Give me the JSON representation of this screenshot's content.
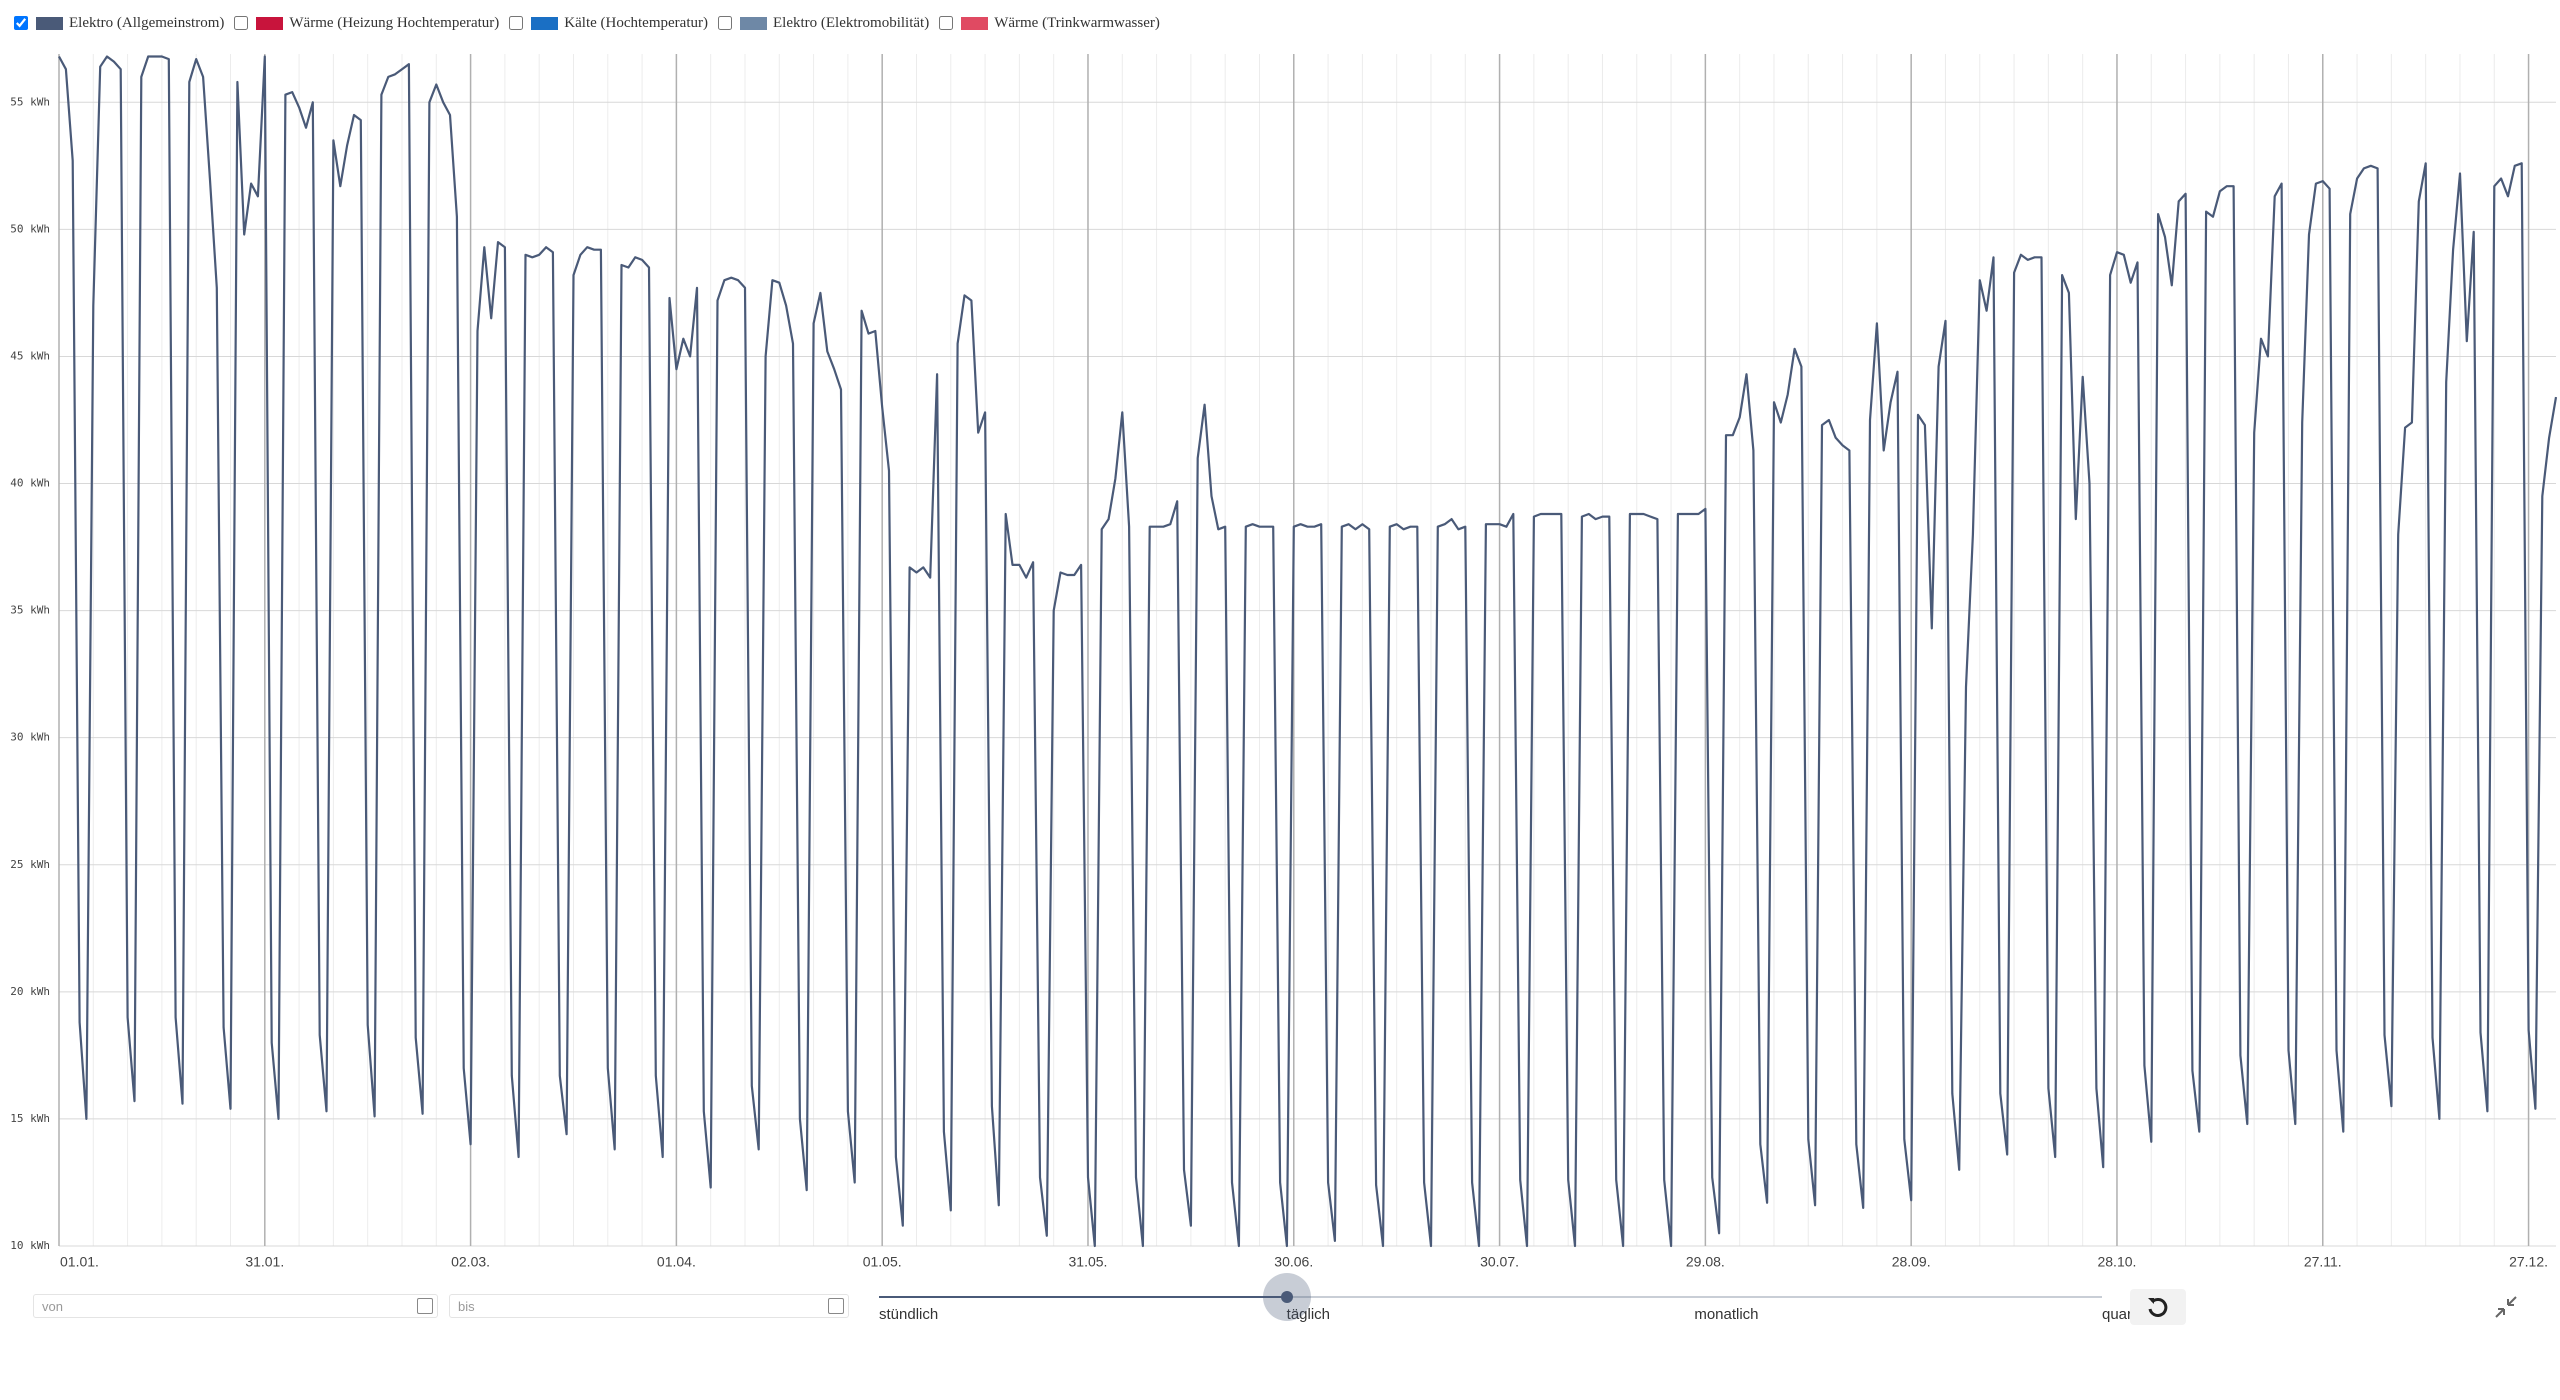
{
  "chart_data": {
    "type": "line",
    "series": [
      {
        "name": "Elektro (Allgemeinstrom)",
        "color": "#4a5a78",
        "visible": true,
        "values": [
          56.8,
          56.3,
          52.7,
          18.8,
          15,
          47,
          56.4,
          56.8,
          56.6,
          56.3,
          19,
          15.7,
          56,
          56.8,
          56.8,
          56.8,
          56.7,
          19,
          15.6,
          55.8,
          56.7,
          56,
          52,
          47.7,
          18.6,
          15.4,
          55.8,
          49.8,
          51.8,
          51.3,
          56.8,
          18,
          15,
          55.3,
          55.4,
          54.8,
          54,
          55,
          18.3,
          15.3,
          53.5,
          51.7,
          53.3,
          54.5,
          54.3,
          18.7,
          15.1,
          55.3,
          56,
          56.1,
          56.3,
          56.5,
          18.2,
          15.2,
          55,
          55.7,
          55,
          54.5,
          50.5,
          17,
          14,
          46,
          49.3,
          46.5,
          49.5,
          49.3,
          16.7,
          13.5,
          49,
          48.9,
          49,
          49.3,
          49.1,
          16.7,
          14.4,
          48.2,
          49,
          49.3,
          49.2,
          49.2,
          17,
          13.8,
          48.6,
          48.5,
          48.9,
          48.8,
          48.5,
          16.7,
          13.5,
          47.3,
          44.5,
          45.7,
          45,
          47.7,
          15.3,
          12.3,
          47.2,
          48,
          48.1,
          48,
          47.7,
          16.3,
          13.8,
          45,
          48,
          47.9,
          47,
          45.5,
          15,
          12.2,
          46.3,
          47.5,
          45.2,
          44.5,
          43.7,
          15.3,
          12.5,
          46.8,
          45.9,
          46,
          43,
          40.5,
          13.5,
          10.8,
          36.7,
          36.5,
          36.7,
          36.3,
          44.3,
          14.5,
          11.4,
          45.5,
          47.4,
          47.2,
          42,
          42.8,
          15.5,
          11.6,
          38.8,
          36.8,
          36.8,
          36.3,
          36.9,
          12.7,
          10.4,
          35,
          36.5,
          36.4,
          36.4,
          36.8,
          12.7,
          10,
          38.2,
          38.6,
          40.2,
          42.8,
          38.3,
          12.7,
          10,
          38.3,
          38.3,
          38.3,
          38.4,
          39.3,
          13,
          10.8,
          41,
          43.1,
          39.5,
          38.2,
          38.3,
          12.5,
          10,
          38.3,
          38.4,
          38.3,
          38.3,
          38.3,
          12.5,
          10,
          38.3,
          38.4,
          38.3,
          38.3,
          38.4,
          12.5,
          10.2,
          38.3,
          38.4,
          38.2,
          38.4,
          38.2,
          12.4,
          10,
          38.3,
          38.4,
          38.2,
          38.3,
          38.3,
          12.5,
          10,
          38.3,
          38.4,
          38.6,
          38.2,
          38.3,
          12.5,
          10,
          38.4,
          38.4,
          38.4,
          38.3,
          38.8,
          12.6,
          10,
          38.7,
          38.8,
          38.8,
          38.8,
          38.8,
          12.6,
          10,
          38.7,
          38.8,
          38.6,
          38.7,
          38.7,
          12.6,
          10,
          38.8,
          38.8,
          38.8,
          38.7,
          38.6,
          12.6,
          10,
          38.8,
          38.8,
          38.8,
          38.8,
          39,
          12.7,
          10.5,
          41.9,
          41.9,
          42.6,
          44.3,
          41.3,
          14,
          11.7,
          43.2,
          42.4,
          43.5,
          45.3,
          44.6,
          14.2,
          11.6,
          42.3,
          42.5,
          41.8,
          41.5,
          41.3,
          14,
          11.5,
          42.5,
          46.3,
          41.3,
          43.2,
          44.4,
          14.2,
          11.8,
          42.7,
          42.3,
          34.3,
          44.6,
          46.4,
          16,
          13,
          32,
          38,
          48,
          46.8,
          48.9,
          16,
          13.6,
          48.3,
          49,
          48.8,
          48.9,
          48.9,
          16.2,
          13.5,
          48.2,
          47.5,
          38.6,
          44.2,
          40,
          16.2,
          13.1,
          48.2,
          49.1,
          49,
          47.9,
          48.7,
          17.1,
          14.1,
          50.6,
          49.7,
          47.8,
          51.1,
          51.4,
          16.9,
          14.5,
          50.7,
          50.5,
          51.5,
          51.7,
          51.7,
          17.5,
          14.8,
          42,
          45.7,
          45,
          51.3,
          51.8,
          17.7,
          14.8,
          42.4,
          49.8,
          51.8,
          51.9,
          51.6,
          17.7,
          14.5,
          50.6,
          52,
          52.4,
          52.5,
          52.4,
          18.3,
          15.5,
          38,
          42.2,
          42.4,
          51.1,
          52.6,
          18.2,
          15,
          44,
          49.2,
          52.2,
          45.6,
          49.9,
          18.4,
          15.3,
          51.7,
          52,
          51.3,
          52.5,
          52.6,
          18.5,
          15.4,
          39.5,
          41.8,
          43.4
        ]
      },
      {
        "name": "Wärme (Heizung Hochtemperatur)",
        "color": "#c8143c",
        "visible": false
      },
      {
        "name": "Kälte (Hochtemperatur)",
        "color": "#1a6fc4",
        "visible": false
      },
      {
        "name": "Elektro (Elektromobilität)",
        "color": "#6e88a6",
        "visible": false
      },
      {
        "name": "Wärme (Trinkwarmwasser)",
        "color": "#e04a62",
        "visible": false
      }
    ],
    "categories": [
      "01.01.",
      null,
      null,
      null,
      null,
      null,
      null,
      null,
      null,
      null,
      null,
      null,
      null,
      null,
      null,
      null,
      null,
      null,
      null,
      null,
      null,
      null,
      null,
      null,
      null,
      null,
      null,
      null,
      null,
      null,
      "31.01.",
      null,
      null,
      null,
      null,
      null,
      null,
      null,
      null,
      null,
      null,
      null,
      null,
      null,
      null,
      null,
      null,
      null,
      null,
      null,
      null,
      null,
      null,
      null,
      null,
      null,
      null,
      null,
      null,
      null,
      "02.03.",
      null,
      null,
      null,
      null,
      null,
      null,
      null,
      null,
      null,
      null,
      null,
      null,
      null,
      null,
      null,
      null,
      null,
      null,
      null,
      null,
      null,
      null,
      null,
      null,
      null,
      null,
      null,
      null,
      null,
      "01.04.",
      null,
      null,
      null,
      null,
      null,
      null,
      null,
      null,
      null,
      null,
      null,
      null,
      null,
      null,
      null,
      null,
      null,
      null,
      null,
      null,
      null,
      null,
      null,
      null,
      null,
      null,
      null,
      null,
      null,
      "01.05.",
      null,
      null,
      null,
      null,
      null,
      null,
      null,
      null,
      null,
      null,
      null,
      null,
      null,
      null,
      null,
      null,
      null,
      null,
      null,
      null,
      null,
      null,
      null,
      null,
      null,
      null,
      null,
      null,
      null,
      "31.05.",
      null,
      null,
      null,
      null,
      null,
      null,
      null,
      null,
      null,
      null,
      null,
      null,
      null,
      null,
      null,
      null,
      null,
      null,
      null,
      null,
      null,
      null,
      null,
      null,
      null,
      null,
      null,
      null,
      null,
      "30.06.",
      null,
      null,
      null,
      null,
      null,
      null,
      null,
      null,
      null,
      null,
      null,
      null,
      null,
      null,
      null,
      null,
      null,
      null,
      null,
      null,
      null,
      null,
      null,
      null,
      null,
      null,
      null,
      null,
      null,
      "30.07.",
      null,
      null,
      null,
      null,
      null,
      null,
      null,
      null,
      null,
      null,
      null,
      null,
      null,
      null,
      null,
      null,
      null,
      null,
      null,
      null,
      null,
      null,
      null,
      null,
      null,
      null,
      null,
      null,
      null,
      "29.08.",
      null,
      null,
      null,
      null,
      null,
      null,
      null,
      null,
      null,
      null,
      null,
      null,
      null,
      null,
      null,
      null,
      null,
      null,
      null,
      null,
      null,
      null,
      null,
      null,
      null,
      null,
      null,
      null,
      null,
      "28.09.",
      null,
      null,
      null,
      null,
      null,
      null,
      null,
      null,
      null,
      null,
      null,
      null,
      null,
      null,
      null,
      null,
      null,
      null,
      null,
      null,
      null,
      null,
      null,
      null,
      null,
      null,
      null,
      null,
      null,
      "28.10.",
      null,
      null,
      null,
      null,
      null,
      null,
      null,
      null,
      null,
      null,
      null,
      null,
      null,
      null,
      null,
      null,
      null,
      null,
      null,
      null,
      null,
      null,
      null,
      null,
      null,
      null,
      null,
      null,
      null,
      "27.11.",
      null,
      null,
      null,
      null,
      null,
      null,
      null,
      null,
      null,
      null,
      null,
      null,
      null,
      null,
      null,
      null,
      null,
      null,
      null,
      null,
      null,
      null,
      null,
      null,
      null,
      null,
      null,
      null,
      null,
      "27.12.",
      null,
      null,
      null,
      null
    ],
    "ylim": [
      10,
      56.9
    ],
    "yticks": [
      {
        "value": 10,
        "label": "10 kWh"
      },
      {
        "value": 15,
        "label": "15 kWh"
      },
      {
        "value": 20,
        "label": "20 kWh"
      },
      {
        "value": 25,
        "label": "25 kWh"
      },
      {
        "value": 30,
        "label": "30 kWh"
      },
      {
        "value": 35,
        "label": "35 kWh"
      },
      {
        "value": 40,
        "label": "40 kWh"
      },
      {
        "value": 45,
        "label": "45 kWh"
      },
      {
        "value": 50,
        "label": "50 kWh"
      },
      {
        "value": 55,
        "label": "55 kWh"
      }
    ],
    "grid": true
  },
  "controls": {
    "from_placeholder": "von",
    "to_placeholder": "bis",
    "resolutions": [
      "stündlich",
      "täglich",
      "monatlich",
      "quar"
    ],
    "selected": 1
  }
}
